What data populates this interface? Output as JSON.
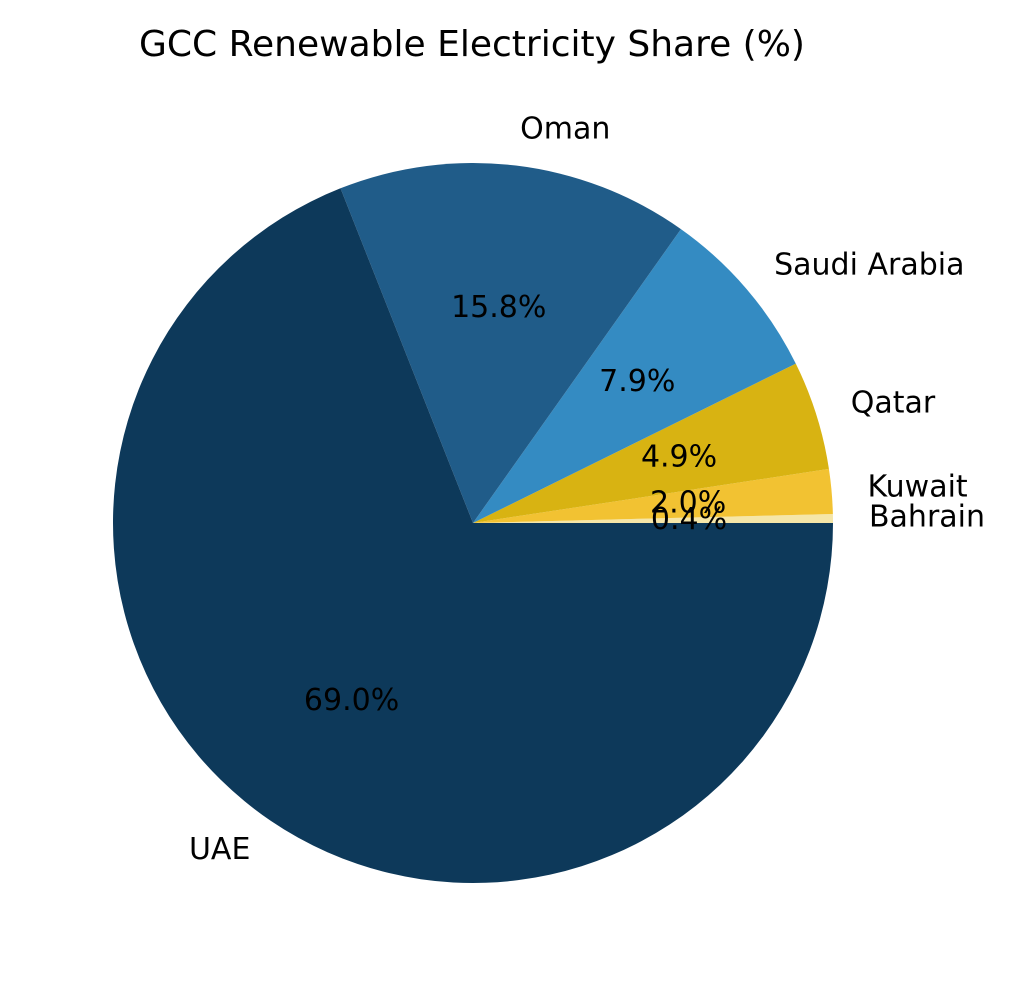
{
  "chart_data": {
    "type": "pie",
    "title": "GCC Renewable Electricity Share (%)",
    "start_angle_deg": 0,
    "direction": "counterclockwise",
    "slices": [
      {
        "label": "Bahrain",
        "value": 0.4,
        "pct_label": "0.4%",
        "color": "#f5e6a8"
      },
      {
        "label": "Kuwait",
        "value": 2.0,
        "pct_label": "2.0%",
        "color": "#f2c232"
      },
      {
        "label": "Qatar",
        "value": 4.9,
        "pct_label": "4.9%",
        "color": "#d8b312"
      },
      {
        "label": "Saudi Arabia",
        "value": 7.9,
        "pct_label": "7.9%",
        "color": "#348bc2"
      },
      {
        "label": "Oman",
        "value": 15.8,
        "pct_label": "15.8%",
        "color": "#205c89"
      },
      {
        "label": "UAE",
        "value": 69.0,
        "pct_label": "69.0%",
        "color": "#0d395a"
      }
    ]
  }
}
